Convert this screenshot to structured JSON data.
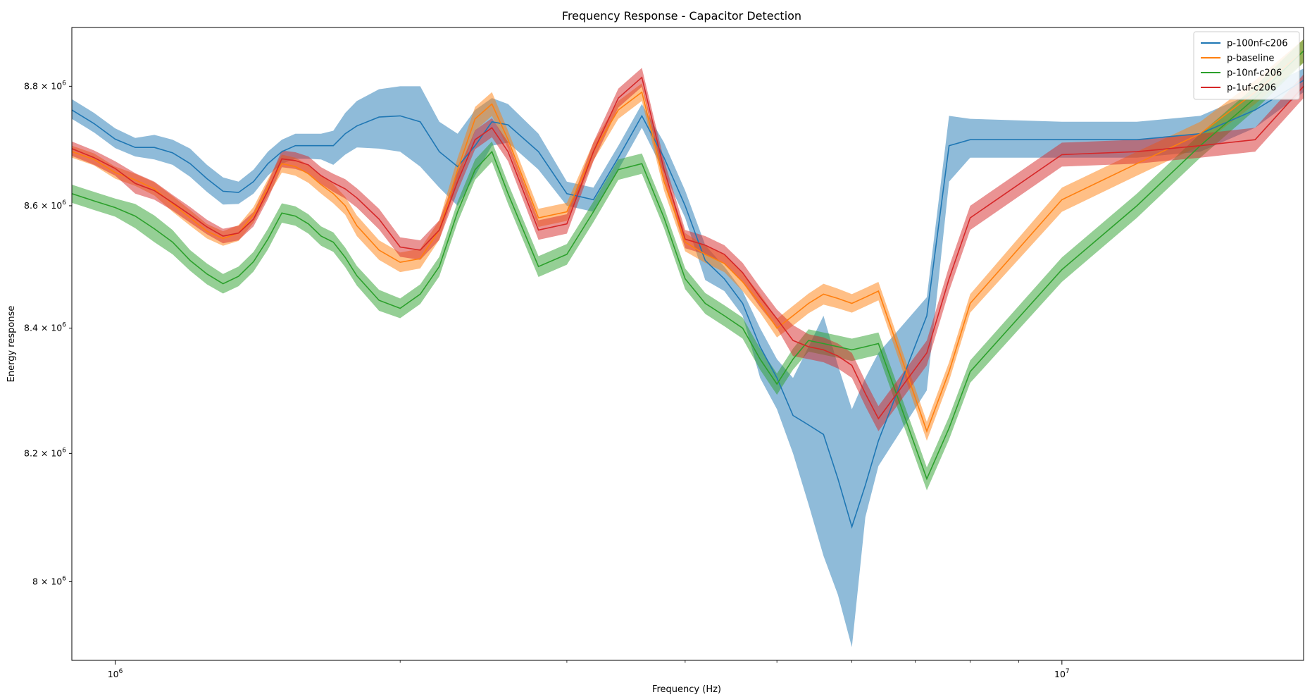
{
  "chart_data": {
    "type": "line",
    "title": "Frequency Response - Capacitor Detection",
    "xlabel": "Frequency (Hz)",
    "ylabel": "Energy response",
    "x_scale": "log",
    "y_scale": "log",
    "xlim": [
      900000,
      18000000
    ],
    "ylim": [
      7880000,
      8900000
    ],
    "x_ticks": [
      {
        "value": 1000000,
        "mantissa": "10",
        "exponent": "6"
      },
      {
        "value": 10000000,
        "mantissa": "10",
        "exponent": "7"
      }
    ],
    "y_ticks": [
      {
        "value": 8000000,
        "mantissa": "8 × 10",
        "exponent": "6"
      },
      {
        "value": 8200000,
        "mantissa": "8.2 × 10",
        "exponent": "6"
      },
      {
        "value": 8400000,
        "mantissa": "8.4 × 10",
        "exponent": "6"
      },
      {
        "value": 8600000,
        "mantissa": "8.6 × 10",
        "exponent": "6"
      },
      {
        "value": 8800000,
        "mantissa": "8.8 × 10",
        "exponent": "6"
      }
    ],
    "grid": false,
    "legend_position": "top-right",
    "x": [
      900000,
      950000,
      1000000,
      1050000,
      1100000,
      1150000,
      1200000,
      1250000,
      1300000,
      1350000,
      1400000,
      1450000,
      1500000,
      1550000,
      1600000,
      1650000,
      1700000,
      1750000,
      1800000,
      1900000,
      2000000,
      2100000,
      2200000,
      2300000,
      2400000,
      2500000,
      2600000,
      2800000,
      3000000,
      3200000,
      3400000,
      3600000,
      3800000,
      4000000,
      4200000,
      4400000,
      4600000,
      4800000,
      5000000,
      5200000,
      5400000,
      5600000,
      5800000,
      6000000,
      6200000,
      6400000,
      7200000,
      7600000,
      8000000,
      10000000,
      12000000,
      14000000,
      16000000,
      18000000
    ],
    "series": [
      {
        "name": "p-100nf-c206",
        "color": "#1f77b4",
        "values": [
          8760000,
          8737000,
          8711000,
          8697000,
          8697000,
          8688000,
          8670000,
          8645000,
          8624000,
          8622000,
          8640000,
          8670000,
          8690000,
          8700000,
          8700000,
          8700000,
          8700000,
          8720000,
          8733000,
          8748000,
          8750000,
          8740000,
          8690000,
          8665000,
          8700000,
          8740000,
          8735000,
          8690000,
          8620000,
          8610000,
          8680000,
          8750000,
          8680000,
          8600000,
          8510000,
          8480000,
          8440000,
          8370000,
          8320000,
          8260000,
          8245000,
          8230000,
          8160000,
          8085000,
          8150000,
          8220000,
          8420000,
          8700000,
          8710000,
          8710000,
          8710000,
          8720000,
          8760000,
          8810000
        ],
        "lower": [
          8745000,
          8722000,
          8696000,
          8682000,
          8677000,
          8668000,
          8648000,
          8623000,
          8602000,
          8603000,
          8620000,
          8650000,
          8670000,
          8678000,
          8678000,
          8677000,
          8668000,
          8685000,
          8697000,
          8695000,
          8690000,
          8665000,
          8630000,
          8600000,
          8650000,
          8700000,
          8705000,
          8660000,
          8600000,
          8590000,
          8660000,
          8730000,
          8655000,
          8580000,
          8478000,
          8460000,
          8420000,
          8320000,
          8270000,
          8200000,
          8120000,
          8040000,
          7980000,
          7900000,
          8100000,
          8180000,
          8300000,
          8640000,
          8680000,
          8680000,
          8680000,
          8690000,
          8730000,
          8790000
        ],
        "upper": [
          8778000,
          8755000,
          8729000,
          8713000,
          8718000,
          8710000,
          8695000,
          8668000,
          8647000,
          8640000,
          8660000,
          8690000,
          8710000,
          8720000,
          8720000,
          8720000,
          8725000,
          8755000,
          8775000,
          8795000,
          8800000,
          8800000,
          8740000,
          8720000,
          8760000,
          8780000,
          8770000,
          8720000,
          8640000,
          8630000,
          8700000,
          8770000,
          8705000,
          8625000,
          8535000,
          8500000,
          8460000,
          8400000,
          8350000,
          8320000,
          8370000,
          8420000,
          8340000,
          8270000,
          8320000,
          8360000,
          8450000,
          8750000,
          8745000,
          8740000,
          8740000,
          8750000,
          8790000,
          8830000
        ]
      },
      {
        "name": "p-baseline",
        "color": "#ff7f0e",
        "values": [
          8690000,
          8677000,
          8655000,
          8643000,
          8628000,
          8603000,
          8580000,
          8558000,
          8546000,
          8555000,
          8585000,
          8630000,
          8670000,
          8665000,
          8653000,
          8635000,
          8620000,
          8600000,
          8567000,
          8527000,
          8507000,
          8513000,
          8560000,
          8660000,
          8745000,
          8770000,
          8710000,
          8580000,
          8590000,
          8690000,
          8760000,
          8790000,
          8640000,
          8540000,
          8520000,
          8505000,
          8475000,
          8440000,
          8400000,
          8420000,
          8440000,
          8455000,
          8448000,
          8440000,
          8450000,
          8460000,
          8235000,
          8330000,
          8440000,
          8610000,
          8670000,
          8720000,
          8790000,
          8860000
        ],
        "lower": [
          8680000,
          8667000,
          8645000,
          8633000,
          8617000,
          8590000,
          8567000,
          8546000,
          8534000,
          8542000,
          8572000,
          8616000,
          8655000,
          8650000,
          8638000,
          8620000,
          8604000,
          8585000,
          8550000,
          8511000,
          8491000,
          8497000,
          8544000,
          8640000,
          8725000,
          8750000,
          8695000,
          8565000,
          8575000,
          8675000,
          8745000,
          8775000,
          8625000,
          8525000,
          8506000,
          8491000,
          8460000,
          8425000,
          8385000,
          8404000,
          8424000,
          8438000,
          8432000,
          8425000,
          8435000,
          8445000,
          8220000,
          8315000,
          8425000,
          8590000,
          8650000,
          8700000,
          8770000,
          8840000
        ],
        "upper": [
          8700000,
          8687000,
          8665000,
          8653000,
          8639000,
          8616000,
          8593000,
          8570000,
          8558000,
          8568000,
          8598000,
          8644000,
          8685000,
          8680000,
          8668000,
          8650000,
          8636000,
          8615000,
          8584000,
          8543000,
          8523000,
          8529000,
          8576000,
          8680000,
          8765000,
          8790000,
          8725000,
          8595000,
          8605000,
          8705000,
          8775000,
          8805000,
          8655000,
          8555000,
          8534000,
          8519000,
          8490000,
          8455000,
          8415000,
          8436000,
          8456000,
          8472000,
          8464000,
          8455000,
          8465000,
          8475000,
          8250000,
          8345000,
          8455000,
          8630000,
          8690000,
          8740000,
          8810000,
          8880000
        ]
      },
      {
        "name": "p-10nf-c206",
        "color": "#2ca02c",
        "values": [
          8620000,
          8608000,
          8597000,
          8583000,
          8562000,
          8540000,
          8510000,
          8488000,
          8472000,
          8484000,
          8508000,
          8545000,
          8588000,
          8583000,
          8570000,
          8550000,
          8540000,
          8515000,
          8485000,
          8445000,
          8432000,
          8455000,
          8500000,
          8590000,
          8660000,
          8690000,
          8620000,
          8500000,
          8520000,
          8590000,
          8660000,
          8670000,
          8580000,
          8480000,
          8440000,
          8420000,
          8400000,
          8350000,
          8310000,
          8350000,
          8380000,
          8375000,
          8370000,
          8365000,
          8370000,
          8375000,
          8160000,
          8240000,
          8330000,
          8495000,
          8600000,
          8700000,
          8780000,
          8860000
        ],
        "lower": [
          8605000,
          8593000,
          8582000,
          8563000,
          8540000,
          8520000,
          8493000,
          8471000,
          8456000,
          8468000,
          8492000,
          8528000,
          8572000,
          8567000,
          8554000,
          8534000,
          8524000,
          8499000,
          8469000,
          8428000,
          8416000,
          8439000,
          8484000,
          8573000,
          8643000,
          8673000,
          8603000,
          8483000,
          8503000,
          8573000,
          8643000,
          8653000,
          8563000,
          8463000,
          8423000,
          8403000,
          8383000,
          8333000,
          8293000,
          8333000,
          8362000,
          8357000,
          8352000,
          8347000,
          8352000,
          8357000,
          8142000,
          8222000,
          8312000,
          8475000,
          8580000,
          8680000,
          8760000,
          8840000
        ],
        "upper": [
          8635000,
          8623000,
          8612000,
          8603000,
          8584000,
          8560000,
          8527000,
          8505000,
          8488000,
          8500000,
          8524000,
          8562000,
          8604000,
          8599000,
          8586000,
          8566000,
          8556000,
          8531000,
          8501000,
          8462000,
          8448000,
          8471000,
          8516000,
          8607000,
          8677000,
          8707000,
          8637000,
          8517000,
          8537000,
          8607000,
          8677000,
          8687000,
          8597000,
          8497000,
          8457000,
          8437000,
          8417000,
          8367000,
          8327000,
          8367000,
          8398000,
          8393000,
          8388000,
          8383000,
          8388000,
          8393000,
          8178000,
          8258000,
          8348000,
          8515000,
          8620000,
          8720000,
          8800000,
          8880000
        ]
      },
      {
        "name": "p-1uf-c206",
        "color": "#d62728",
        "values": [
          8695000,
          8680000,
          8662000,
          8637000,
          8625000,
          8605000,
          8585000,
          8565000,
          8550000,
          8555000,
          8578000,
          8625000,
          8678000,
          8675000,
          8668000,
          8650000,
          8638000,
          8628000,
          8613000,
          8578000,
          8532000,
          8527000,
          8560000,
          8640000,
          8710000,
          8730000,
          8690000,
          8560000,
          8570000,
          8690000,
          8780000,
          8815000,
          8660000,
          8545000,
          8535000,
          8520000,
          8490000,
          8450000,
          8415000,
          8380000,
          8370000,
          8365000,
          8355000,
          8340000,
          8295000,
          8255000,
          8360000,
          8480000,
          8580000,
          8685000,
          8690000,
          8700000,
          8710000,
          8800000
        ],
        "lower": [
          8683000,
          8668000,
          8650000,
          8620000,
          8610000,
          8592000,
          8572000,
          8553000,
          8538000,
          8543000,
          8566000,
          8611000,
          8664000,
          8661000,
          8654000,
          8636000,
          8623000,
          8612000,
          8597000,
          8561000,
          8516000,
          8511000,
          8544000,
          8624000,
          8694000,
          8714000,
          8674000,
          8544000,
          8554000,
          8674000,
          8764000,
          8799000,
          8644000,
          8530000,
          8520000,
          8505000,
          8474000,
          8434000,
          8400000,
          8355000,
          8350000,
          8345000,
          8335000,
          8320000,
          8275000,
          8235000,
          8340000,
          8460000,
          8560000,
          8665000,
          8670000,
          8680000,
          8690000,
          8780000
        ],
        "upper": [
          8707000,
          8692000,
          8674000,
          8654000,
          8640000,
          8618000,
          8598000,
          8577000,
          8562000,
          8567000,
          8590000,
          8639000,
          8692000,
          8689000,
          8682000,
          8664000,
          8653000,
          8644000,
          8629000,
          8595000,
          8548000,
          8543000,
          8576000,
          8656000,
          8726000,
          8746000,
          8706000,
          8576000,
          8586000,
          8706000,
          8796000,
          8831000,
          8676000,
          8560000,
          8550000,
          8535000,
          8506000,
          8466000,
          8430000,
          8405000,
          8390000,
          8385000,
          8375000,
          8360000,
          8315000,
          8275000,
          8380000,
          8500000,
          8600000,
          8705000,
          8710000,
          8720000,
          8730000,
          8820000
        ]
      }
    ]
  }
}
